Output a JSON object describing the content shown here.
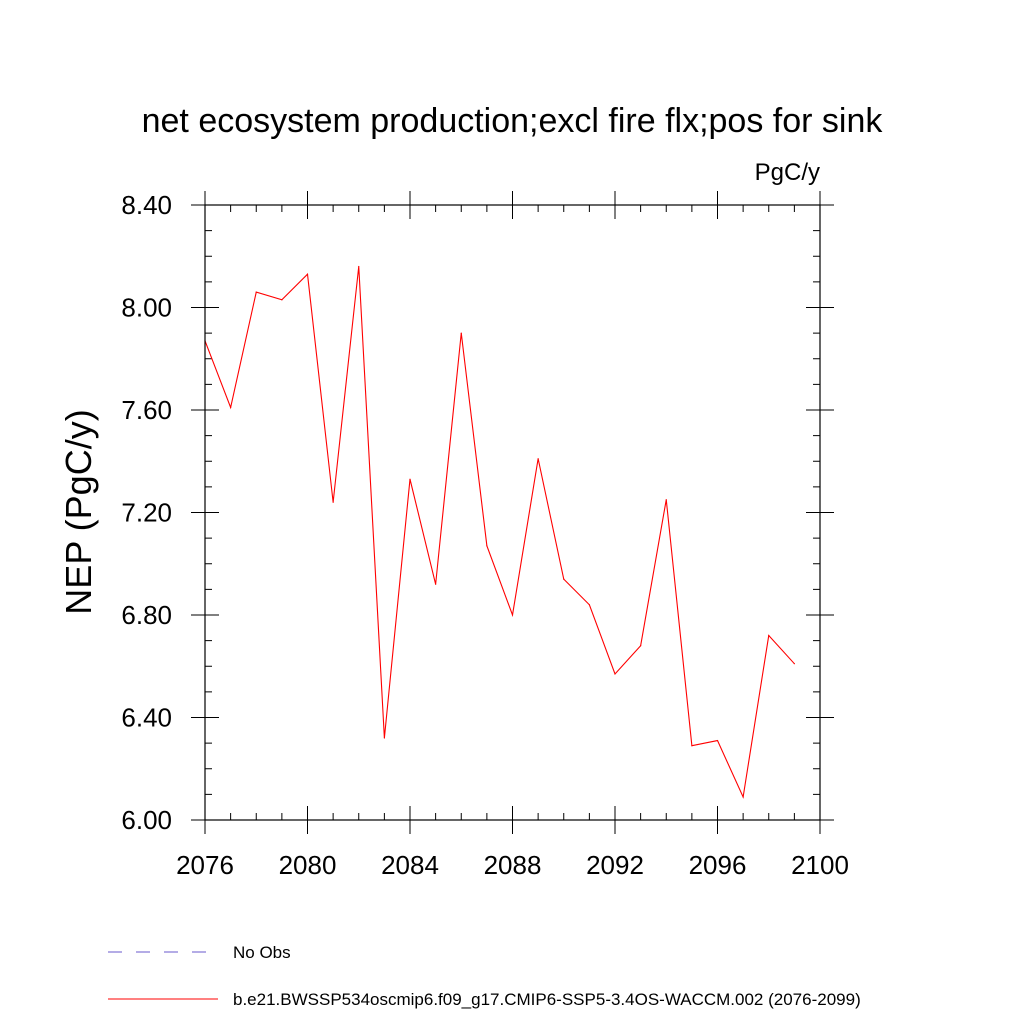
{
  "chart_data": {
    "type": "line",
    "title": "net ecosystem production;excl fire flx;pos for sink",
    "units": "PgC/y",
    "ylabel": "NEP  (PgC/y)",
    "xlabel": "",
    "xlim": [
      2076,
      2100
    ],
    "ylim": [
      6.0,
      8.4
    ],
    "x_ticks": [
      2076,
      2080,
      2084,
      2088,
      2092,
      2096,
      2100
    ],
    "x_tick_labels": [
      "2076",
      "2080",
      "2084",
      "2088",
      "2092",
      "2096",
      "2100"
    ],
    "y_ticks": [
      6.0,
      6.4,
      6.8,
      7.2,
      7.6,
      8.0,
      8.4
    ],
    "y_tick_labels": [
      "6.00",
      "6.40",
      "6.80",
      "7.20",
      "7.60",
      "8.00",
      "8.40"
    ],
    "grid": false,
    "legend_placement": "bottom",
    "series": [
      {
        "name": "b.e21.BWSSP534oscmip6.f09_g17.CMIP6-SSP5-3.4OS-WACCM.002 (2076-2099)",
        "color": "#ff0000",
        "style": "solid",
        "x": [
          2076,
          2077,
          2078,
          2079,
          2080,
          2081,
          2082,
          2083,
          2084,
          2085,
          2086,
          2087,
          2088,
          2089,
          2090,
          2091,
          2092,
          2093,
          2094,
          2095,
          2096,
          2097,
          2098,
          2099
        ],
        "values": [
          7.87,
          7.61,
          8.06,
          8.03,
          8.13,
          7.24,
          8.16,
          6.32,
          7.33,
          6.92,
          7.9,
          7.07,
          6.8,
          7.41,
          6.94,
          6.84,
          6.57,
          6.68,
          7.25,
          6.29,
          6.31,
          6.09,
          6.72,
          6.61
        ]
      }
    ],
    "legend": [
      {
        "label": "No Obs",
        "color": "#6a5acd",
        "style": "dashed"
      },
      {
        "label": "b.e21.BWSSP534oscmip6.f09_g17.CMIP6-SSP5-3.4OS-WACCM.002 (2076-2099)",
        "color": "#ff0000",
        "style": "solid"
      }
    ]
  }
}
